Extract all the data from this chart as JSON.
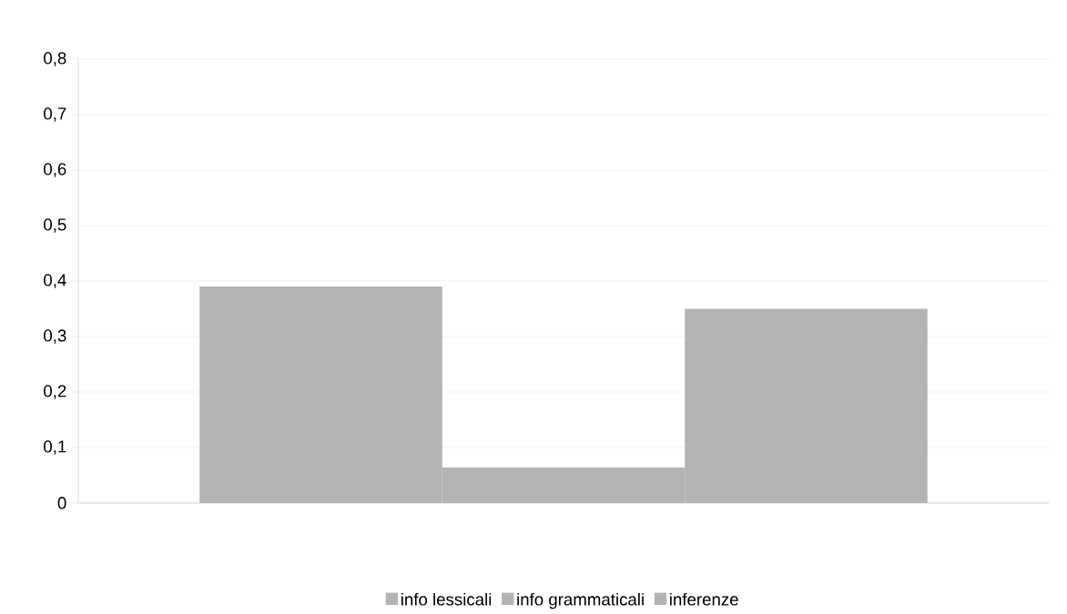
{
  "chart_data": {
    "type": "bar",
    "categories": [
      null
    ],
    "series": [
      {
        "name": "info lessicali",
        "color": "#b3b3b3",
        "values": [
          0.39
        ]
      },
      {
        "name": "info grammaticali",
        "color": "#b3b3b3",
        "values": [
          0.064
        ]
      },
      {
        "name": "inferenze",
        "color": "#b3b3b3",
        "values": [
          0.35
        ]
      }
    ],
    "ylim": [
      0,
      0.8
    ],
    "yticks": [
      0,
      {
        "value": 0.1,
        "label": "0,1"
      },
      {
        "value": 0.2,
        "label": "0,2"
      },
      {
        "value": 0.3,
        "label": "0,3"
      },
      {
        "value": 0.4,
        "label": "0,4"
      },
      {
        "value": 0.5,
        "label": "0,5"
      },
      {
        "value": 0.6,
        "label": "0,6"
      },
      {
        "value": 0.7,
        "label": "0,7"
      },
      {
        "value": 0.8,
        "label": "0,8"
      }
    ],
    "grid": "y",
    "legend": "bottom"
  }
}
